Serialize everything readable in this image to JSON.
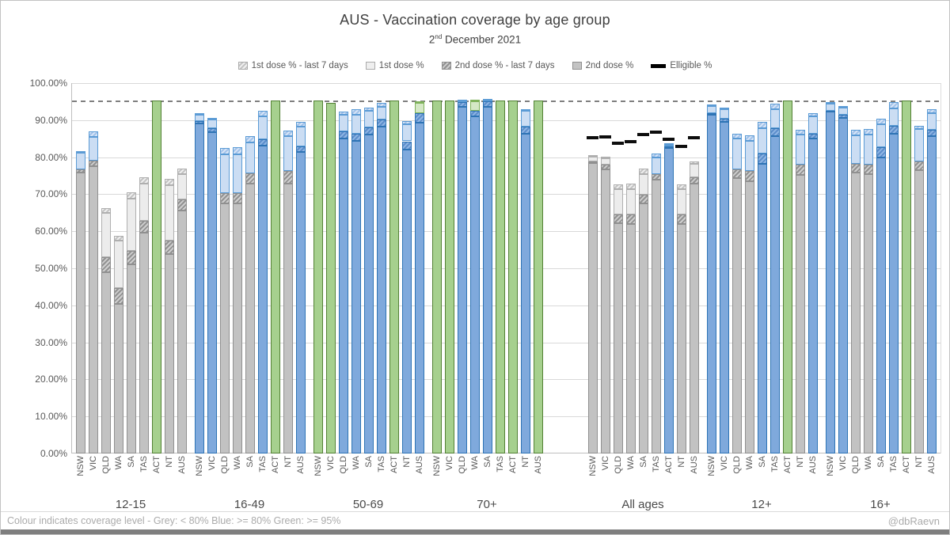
{
  "header": {
    "title": "AUS - Vaccination coverage by age group",
    "subtitle_day": "2",
    "subtitle_sup": "nd",
    "subtitle_rest": " December 2021"
  },
  "footer": {
    "note": "Colour indicates coverage level - Grey: < 80% Blue: >= 80%  Green: >= 95%",
    "credit": "@dbRaevn"
  },
  "colors": {
    "grey_2nd": "#c2c2c2",
    "grey_1st": "#ececec",
    "blue_2nd": "#7fa9dc",
    "blue_1st": "#cbddf3",
    "green": "#a6d08e",
    "green_light": "#d5e8c6",
    "eligible_marker": "#0d0d0d",
    "reference_line": "#7f7f7f"
  },
  "chart_data": {
    "type": "bar",
    "stacked": true,
    "title": "AUS - Vaccination coverage by age group",
    "subtitle": "2nd December 2021",
    "ylim": [
      0,
      100
    ],
    "grid": true,
    "reference_line_value": 95,
    "display_cap": 95.3,
    "color_rule": "Grey: < 80%, Blue: >= 80%, Green: >= 95%",
    "legend_position": "top",
    "legend": [
      {
        "label": "1st dose % - last 7 days",
        "swatch": "hatch-light"
      },
      {
        "label": "1st dose %",
        "swatch": "light"
      },
      {
        "label": "2nd dose % - last 7 days",
        "swatch": "hatch-dark"
      },
      {
        "label": "2nd dose %",
        "swatch": "dark"
      },
      {
        "label": "Elligible %",
        "swatch": "eligible"
      }
    ],
    "y_axis": {
      "labels": [
        "100.00%",
        "90.00%",
        "80.00%",
        "70.00%",
        "60.00%",
        "50.00%",
        "40.00%",
        "30.00%",
        "20.00%",
        "10.00%",
        "0.00%"
      ]
    },
    "series_note": "d2 = 2nd dose %, d2w = 2nd dose incl last 7 days, d1 = 1st dose %, d1w = 1st dose incl last 7 days (cumulative %); c2/c1 = segment colour class",
    "groups": [
      {
        "label": "12-15",
        "bars": [
          {
            "state": "NSW",
            "d2": 75.8,
            "d2w": 76.8,
            "d1": 81.1,
            "d1w": 81.4,
            "c2": "grey",
            "c1": "blue"
          },
          {
            "state": "VIC",
            "d2": 77.5,
            "d2w": 79.0,
            "d1": 85.5,
            "d1w": 86.9,
            "c2": "grey",
            "c1": "blue"
          },
          {
            "state": "QLD",
            "d2": 48.9,
            "d2w": 53.1,
            "d1": 65.0,
            "d1w": 66.2,
            "c2": "grey",
            "c1": "grey"
          },
          {
            "state": "WA",
            "d2": 40.4,
            "d2w": 44.7,
            "d1": 57.5,
            "d1w": 58.7,
            "c2": "grey",
            "c1": "grey"
          },
          {
            "state": "SA",
            "d2": 51.1,
            "d2w": 54.6,
            "d1": 68.9,
            "d1w": 70.6,
            "c2": "grey",
            "c1": "grey"
          },
          {
            "state": "TAS",
            "d2": 59.6,
            "d2w": 62.9,
            "d1": 72.9,
            "d1w": 74.5,
            "c2": "grey",
            "c1": "grey"
          },
          {
            "state": "ACT",
            "d2": 95.3,
            "d2w": 95.3,
            "d1": 95.3,
            "d1w": 95.3,
            "c2": "green",
            "c1": "green"
          },
          {
            "state": "NT",
            "d2": 53.9,
            "d2w": 57.5,
            "d1": 72.5,
            "d1w": 74.1,
            "c2": "grey",
            "c1": "grey"
          },
          {
            "state": "AUS",
            "d2": 65.7,
            "d2w": 68.6,
            "d1": 75.4,
            "d1w": 77.0,
            "c2": "grey",
            "c1": "grey"
          }
        ]
      },
      {
        "label": "16-49",
        "bars": [
          {
            "state": "NSW",
            "d2": 89.2,
            "d2w": 89.7,
            "d1": 91.4,
            "d1w": 91.9,
            "c2": "blue",
            "c1": "blue"
          },
          {
            "state": "VIC",
            "d2": 86.8,
            "d2w": 87.9,
            "d1": 90.1,
            "d1w": 90.5,
            "c2": "blue",
            "c1": "blue"
          },
          {
            "state": "QLD",
            "d2": 67.5,
            "d2w": 70.4,
            "d1": 80.7,
            "d1w": 82.4,
            "c2": "grey",
            "c1": "blue"
          },
          {
            "state": "WA",
            "d2": 67.5,
            "d2w": 70.2,
            "d1": 80.7,
            "d1w": 82.6,
            "c2": "grey",
            "c1": "blue"
          },
          {
            "state": "SA",
            "d2": 72.9,
            "d2w": 75.7,
            "d1": 83.9,
            "d1w": 85.7,
            "c2": "grey",
            "c1": "blue"
          },
          {
            "state": "TAS",
            "d2": 83.2,
            "d2w": 84.8,
            "d1": 91.1,
            "d1w": 92.6,
            "c2": "blue",
            "c1": "blue"
          },
          {
            "state": "ACT",
            "d2": 95.3,
            "d2w": 95.3,
            "d1": 95.3,
            "d1w": 95.3,
            "c2": "green",
            "c1": "green"
          },
          {
            "state": "NT",
            "d2": 72.9,
            "d2w": 76.2,
            "d1": 85.7,
            "d1w": 87.1,
            "c2": "grey",
            "c1": "blue"
          },
          {
            "state": "AUS",
            "d2": 81.4,
            "d2w": 83.0,
            "d1": 88.2,
            "d1w": 89.5,
            "c2": "blue",
            "c1": "blue"
          }
        ]
      },
      {
        "label": "50-69",
        "bars": [
          {
            "state": "NSW",
            "d2": 95.3,
            "d2w": 95.3,
            "d1": 95.3,
            "d1w": 95.3,
            "c2": "green",
            "c1": "green"
          },
          {
            "state": "VIC",
            "d2": 94.6,
            "d2w": 94.6,
            "d1": 94.6,
            "d1w": 94.6,
            "c2": "green",
            "c1": "green"
          },
          {
            "state": "QLD",
            "d2": 85.0,
            "d2w": 86.9,
            "d1": 91.4,
            "d1w": 92.4,
            "c2": "blue",
            "c1": "blue"
          },
          {
            "state": "WA",
            "d2": 84.3,
            "d2w": 86.4,
            "d1": 91.4,
            "d1w": 92.9,
            "c2": "blue",
            "c1": "blue"
          },
          {
            "state": "SA",
            "d2": 86.1,
            "d2w": 88.0,
            "d1": 92.5,
            "d1w": 93.4,
            "c2": "blue",
            "c1": "blue"
          },
          {
            "state": "TAS",
            "d2": 88.2,
            "d2w": 90.2,
            "d1": 93.6,
            "d1w": 94.6,
            "c2": "blue",
            "c1": "blue"
          },
          {
            "state": "ACT",
            "d2": 95.3,
            "d2w": 95.3,
            "d1": 95.3,
            "d1w": 95.3,
            "c2": "green",
            "c1": "green"
          },
          {
            "state": "NT",
            "d2": 82.1,
            "d2w": 84.3,
            "d1": 88.8,
            "d1w": 89.8,
            "c2": "blue",
            "c1": "blue"
          },
          {
            "state": "AUS",
            "d2": 89.3,
            "d2w": 91.9,
            "d1": 94.7,
            "d1w": 94.8,
            "c2": "blue",
            "c1": "green"
          }
        ]
      },
      {
        "label": "70+",
        "bars": [
          {
            "state": "NSW",
            "d2": 95.3,
            "d2w": 95.3,
            "d1": 95.3,
            "d1w": 95.3,
            "c2": "green",
            "c1": "green"
          },
          {
            "state": "VIC",
            "d2": 95.3,
            "d2w": 95.3,
            "d1": 95.3,
            "d1w": 95.3,
            "c2": "green",
            "c1": "green"
          },
          {
            "state": "QLD",
            "d2": 93.6,
            "d2w": 94.9,
            "d1": 95.1,
            "d1w": 95.3,
            "c2": "blue",
            "c1": "blue"
          },
          {
            "state": "WA",
            "d2": 91.0,
            "d2w": 92.6,
            "d1": 95.0,
            "d1w": 95.3,
            "c2": "blue",
            "c1": "green"
          },
          {
            "state": "SA",
            "d2": 93.6,
            "d2w": 95.0,
            "d1": 95.2,
            "d1w": 95.3,
            "c2": "blue",
            "c1": "blue"
          },
          {
            "state": "TAS",
            "d2": 95.3,
            "d2w": 95.3,
            "d1": 95.3,
            "d1w": 95.3,
            "c2": "green",
            "c1": "green"
          },
          {
            "state": "ACT",
            "d2": 95.3,
            "d2w": 95.3,
            "d1": 95.3,
            "d1w": 95.3,
            "c2": "green",
            "c1": "green"
          },
          {
            "state": "NT",
            "d2": 86.4,
            "d2w": 88.2,
            "d1": 92.5,
            "d1w": 93.0,
            "c2": "blue",
            "c1": "blue"
          },
          {
            "state": "AUS",
            "d2": 95.3,
            "d2w": 95.3,
            "d1": 95.3,
            "d1w": 95.3,
            "c2": "green",
            "c1": "green"
          }
        ]
      },
      {
        "label": "",
        "spacer": true,
        "bars": []
      },
      {
        "label": "All ages",
        "bars": [
          {
            "state": "NSW",
            "d2": 78.4,
            "d2w": 78.9,
            "d1": 80.2,
            "d1w": 80.6,
            "c2": "grey",
            "c1": "grey",
            "eligible": 85.2
          },
          {
            "state": "VIC",
            "d2": 76.8,
            "d2w": 77.9,
            "d1": 79.7,
            "d1w": 80.1,
            "c2": "grey",
            "c1": "grey",
            "eligible": 85.5
          },
          {
            "state": "QLD",
            "d2": 62.1,
            "d2w": 64.6,
            "d1": 71.4,
            "d1w": 72.6,
            "c2": "grey",
            "c1": "grey",
            "eligible": 83.8
          },
          {
            "state": "WA",
            "d2": 61.9,
            "d2w": 64.5,
            "d1": 71.4,
            "d1w": 72.8,
            "c2": "grey",
            "c1": "grey",
            "eligible": 84.1
          },
          {
            "state": "SA",
            "d2": 67.5,
            "d2w": 69.9,
            "d1": 75.4,
            "d1w": 77.0,
            "c2": "grey",
            "c1": "grey",
            "eligible": 86.2
          },
          {
            "state": "TAS",
            "d2": 73.9,
            "d2w": 75.4,
            "d1": 80.0,
            "d1w": 80.9,
            "c2": "grey",
            "c1": "blue",
            "eligible": 86.7
          },
          {
            "state": "ACT",
            "d2": 82.4,
            "d2w": 82.9,
            "d1": 83.3,
            "d1w": 83.6,
            "c2": "blue",
            "c1": "blue",
            "eligible": 84.8
          },
          {
            "state": "NT",
            "d2": 61.9,
            "d2w": 64.6,
            "d1": 71.4,
            "d1w": 72.6,
            "c2": "grey",
            "c1": "grey",
            "eligible": 82.9
          },
          {
            "state": "AUS",
            "d2": 72.9,
            "d2w": 74.6,
            "d1": 78.2,
            "d1w": 78.8,
            "c2": "grey",
            "c1": "grey",
            "eligible": 85.2
          }
        ]
      },
      {
        "label": "12+",
        "bars": [
          {
            "state": "NSW",
            "d2": 91.5,
            "d2w": 91.8,
            "d1": 93.8,
            "d1w": 94.1,
            "c2": "blue",
            "c1": "blue"
          },
          {
            "state": "VIC",
            "d2": 89.5,
            "d2w": 90.4,
            "d1": 93.0,
            "d1w": 93.4,
            "c2": "blue",
            "c1": "blue"
          },
          {
            "state": "QLD",
            "d2": 74.3,
            "d2w": 76.8,
            "d1": 85.0,
            "d1w": 86.4,
            "c2": "grey",
            "c1": "blue"
          },
          {
            "state": "WA",
            "d2": 73.6,
            "d2w": 76.2,
            "d1": 84.5,
            "d1w": 85.9,
            "c2": "grey",
            "c1": "blue"
          },
          {
            "state": "SA",
            "d2": 78.2,
            "d2w": 80.9,
            "d1": 87.8,
            "d1w": 89.5,
            "c2": "blue",
            "c1": "blue"
          },
          {
            "state": "TAS",
            "d2": 85.7,
            "d2w": 87.8,
            "d1": 92.9,
            "d1w": 94.5,
            "c2": "blue",
            "c1": "blue"
          },
          {
            "state": "ACT",
            "d2": 95.3,
            "d2w": 95.3,
            "d1": 95.3,
            "d1w": 95.3,
            "c2": "green",
            "c1": "green"
          },
          {
            "state": "NT",
            "d2": 75.2,
            "d2w": 77.9,
            "d1": 86.1,
            "d1w": 87.3,
            "c2": "grey",
            "c1": "blue"
          },
          {
            "state": "AUS",
            "d2": 85.0,
            "d2w": 86.4,
            "d1": 91.0,
            "d1w": 91.8,
            "c2": "blue",
            "c1": "blue"
          }
        ]
      },
      {
        "label": "16+",
        "bars": [
          {
            "state": "NSW",
            "d2": 92.3,
            "d2w": 92.6,
            "d1": 94.5,
            "d1w": 94.8,
            "c2": "blue",
            "c1": "blue"
          },
          {
            "state": "VIC",
            "d2": 90.5,
            "d2w": 91.4,
            "d1": 93.3,
            "d1w": 93.7,
            "c2": "blue",
            "c1": "blue"
          },
          {
            "state": "QLD",
            "d2": 75.9,
            "d2w": 78.2,
            "d1": 85.9,
            "d1w": 87.3,
            "c2": "grey",
            "c1": "blue"
          },
          {
            "state": "WA",
            "d2": 75.5,
            "d2w": 77.9,
            "d1": 86.1,
            "d1w": 87.6,
            "c2": "grey",
            "c1": "blue"
          },
          {
            "state": "SA",
            "d2": 80.0,
            "d2w": 82.6,
            "d1": 88.8,
            "d1w": 90.4,
            "c2": "blue",
            "c1": "blue"
          },
          {
            "state": "TAS",
            "d2": 86.4,
            "d2w": 88.4,
            "d1": 93.2,
            "d1w": 94.8,
            "c2": "blue",
            "c1": "blue"
          },
          {
            "state": "ACT",
            "d2": 95.3,
            "d2w": 95.3,
            "d1": 95.3,
            "d1w": 95.3,
            "c2": "green",
            "c1": "green"
          },
          {
            "state": "NT",
            "d2": 76.4,
            "d2w": 78.9,
            "d1": 87.6,
            "d1w": 88.4,
            "c2": "grey",
            "c1": "blue"
          },
          {
            "state": "AUS",
            "d2": 85.7,
            "d2w": 87.3,
            "d1": 91.9,
            "d1w": 93.0,
            "c2": "blue",
            "c1": "blue"
          }
        ]
      }
    ]
  }
}
